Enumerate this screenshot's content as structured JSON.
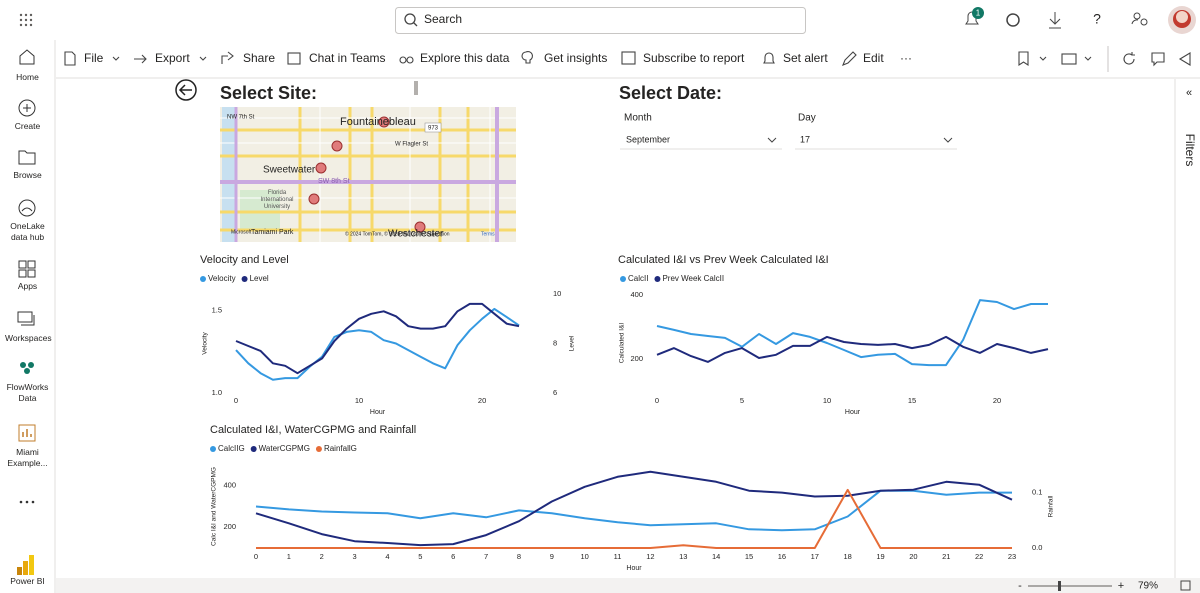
{
  "topbar": {
    "search": "Search",
    "badge": "1"
  },
  "nav": [
    "Home",
    "Create",
    "Browse",
    "OneLake data hub",
    "Apps",
    "Workspaces",
    "FlowWorks Data",
    "Miami Example...",
    "Power BI"
  ],
  "toolbar": [
    "File",
    "Export",
    "Share",
    "Chat in Teams",
    "Explore this data",
    "Get insights",
    "Subscribe to report",
    "Set alert",
    "Edit",
    "···"
  ],
  "site": {
    "title": "Select Site:",
    "map_labels": {
      "fountainebleau": "Fountainebleau",
      "sweetwater": "Sweetwater",
      "fiu": "Florida International University",
      "tamiami": "Tamiami Park",
      "westchester": "Westchester",
      "sw8": "SW 8th St",
      "flagler": "W Flagler St",
      "nw7": "NW 7th St",
      "route": "973",
      "microsoft": "Microsoft",
      "attribution": "© 2024 TomTom, © 2024 Microsoft Corporation",
      "terms": "Terms"
    }
  },
  "date": {
    "title": "Select Date:",
    "month_label": "Month",
    "month": "September",
    "day_label": "Day",
    "day": "17"
  },
  "filters": {
    "label": "Filters",
    "collapse": "«"
  },
  "status": {
    "minus": "-",
    "plus": "+",
    "zoom": "79%"
  },
  "chart_data": [
    {
      "type": "line",
      "title": "Velocity and Level",
      "x": [
        0,
        1,
        2,
        3,
        4,
        5,
        6,
        7,
        8,
        9,
        10,
        11,
        12,
        13,
        14,
        15,
        16,
        17,
        18,
        19,
        20,
        21,
        22,
        23
      ],
      "xlim": [
        0,
        23
      ],
      "xticks": [
        0,
        10,
        20
      ],
      "xlabel": "Hour",
      "ylabel": "Velocity",
      "ylim": [
        1.0,
        1.6
      ],
      "yticks": [
        {
          "value": 1,
          "label": "1.0"
        },
        1.5
      ],
      "y2label": "Level",
      "y2lim": [
        6,
        10
      ],
      "y2ticks": [
        6,
        8,
        10
      ],
      "series": [
        {
          "name": "Velocity",
          "color": "#3599e1",
          "values": [
            1.26,
            1.18,
            1.12,
            1.08,
            1.09,
            1.09,
            1.16,
            1.22,
            1.34,
            1.37,
            1.38,
            1.37,
            1.32,
            1.3,
            1.26,
            1.22,
            1.18,
            1.15,
            1.29,
            1.38,
            1.45,
            1.51,
            1.46,
            1.41
          ]
        },
        {
          "name": "Level",
          "color": "#1f2a7c",
          "axis": "y2",
          "values": [
            8.1,
            7.9,
            7.7,
            7.2,
            7.1,
            6.8,
            7.1,
            7.4,
            8.1,
            8.6,
            9.0,
            9.2,
            9.3,
            9.1,
            8.7,
            8.6,
            8.6,
            8.7,
            9.3,
            9.6,
            9.6,
            9.2,
            8.8,
            8.7
          ]
        }
      ]
    },
    {
      "type": "line",
      "title": "Calculated I&I vs Prev Week Calculated I&I",
      "x": [
        0,
        1,
        2,
        3,
        4,
        5,
        6,
        7,
        8,
        9,
        10,
        11,
        12,
        13,
        14,
        15,
        16,
        17,
        18,
        19,
        20,
        21,
        22,
        23
      ],
      "xlim": [
        0,
        23
      ],
      "xticks": [
        0,
        5,
        10,
        15,
        20
      ],
      "xlabel": "Hour",
      "ylabel": "Calculated I&I",
      "ylim": [
        100,
        400
      ],
      "yticks": [
        200,
        400
      ],
      "series": [
        {
          "name": "CalcII",
          "color": "#3599e1",
          "values": [
            303,
            291,
            278,
            272,
            266,
            238,
            278,
            247,
            281,
            269,
            250,
            228,
            206,
            213,
            216,
            184,
            181,
            181,
            259,
            384,
            378,
            356,
            372,
            372
          ]
        },
        {
          "name": "Prev Week CalcII",
          "color": "#1f2a7c",
          "values": [
            213,
            234,
            209,
            191,
            219,
            234,
            203,
            213,
            241,
            241,
            269,
            253,
            247,
            244,
            247,
            234,
            244,
            269,
            238,
            219,
            247,
            234,
            219,
            231
          ]
        }
      ]
    },
    {
      "type": "line",
      "title": "Calculated I&I, WaterCGPMG and Rainfall",
      "x": [
        0,
        1,
        2,
        3,
        4,
        5,
        6,
        7,
        8,
        9,
        10,
        11,
        12,
        13,
        14,
        15,
        16,
        17,
        18,
        19,
        20,
        21,
        22,
        23
      ],
      "xlim": [
        0,
        23
      ],
      "xticks": [
        0,
        1,
        2,
        3,
        4,
        5,
        6,
        7,
        8,
        9,
        10,
        11,
        12,
        13,
        14,
        15,
        16,
        17,
        18,
        19,
        20,
        21,
        22,
        23
      ],
      "xlabel": "Hour",
      "ylabel": "Calc I&I and WaterCGPMG",
      "ylim": [
        100,
        500
      ],
      "yticks": [
        200,
        400
      ],
      "y2label": "Rainfall",
      "y2lim": [
        0,
        0.15
      ],
      "y2ticks": [
        {
          "value": 0,
          "label": "0.0"
        },
        0.1
      ],
      "series": [
        {
          "name": "CalcIIG",
          "color": "#3599e1",
          "values": [
            300,
            286,
            276,
            271,
            267,
            243,
            267,
            248,
            281,
            267,
            243,
            224,
            210,
            214,
            219,
            190,
            186,
            190,
            252,
            376,
            376,
            357,
            367,
            367
          ]
        },
        {
          "name": "WaterCGPMG",
          "color": "#1f2a7c",
          "values": [
            267,
            219,
            167,
            133,
            124,
            114,
            119,
            162,
            229,
            324,
            395,
            443,
            467,
            443,
            419,
            376,
            367,
            348,
            352,
            376,
            381,
            419,
            405,
            333
          ]
        },
        {
          "name": "RainfallG",
          "color": "#e66c37",
          "axis": "y2",
          "values": [
            0,
            0,
            0,
            0,
            0,
            0,
            0,
            0,
            0,
            0,
            0,
            0,
            0,
            0.005,
            0,
            0,
            0,
            0,
            0.105,
            0,
            0,
            0,
            0,
            0
          ]
        }
      ]
    }
  ]
}
